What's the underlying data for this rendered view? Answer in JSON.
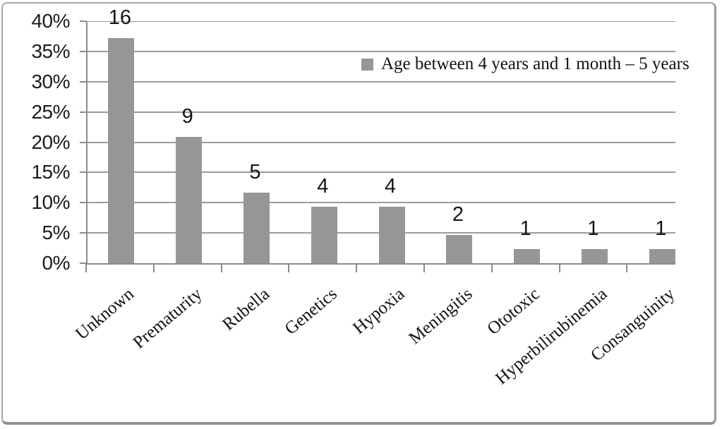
{
  "chart_data": {
    "type": "bar",
    "title": "",
    "categories": [
      "Unknown",
      "Prematurity",
      "Rubella",
      "Genetics",
      "Hypoxia",
      "Meningitis",
      "Ototoxic",
      "Hyperbilirubinemia",
      "Consanguinity"
    ],
    "values": [
      16,
      9,
      5,
      4,
      4,
      2,
      1,
      1,
      1
    ],
    "bar_value_labels": [
      "16",
      "9",
      "5",
      "4",
      "4",
      "2",
      "1",
      "1",
      "1"
    ],
    "percent_equivalents": [
      37.2,
      20.9,
      11.6,
      9.3,
      9.3,
      4.7,
      2.3,
      2.3,
      2.3
    ],
    "y_tick_labels": [
      "40%",
      "35%",
      "30%",
      "25%",
      "20%",
      "15%",
      "10%",
      "5%",
      "0%"
    ],
    "ylim_percent": [
      0,
      40
    ],
    "y_tick_step_percent": 5,
    "xlabel": "",
    "ylabel": "",
    "grid": "horizontal",
    "legend": {
      "label": "Age between 4 years and 1 month – 5 years",
      "position": "inside-top-right",
      "swatch_color": "#969696"
    },
    "bar_color": "#969696",
    "gridline_color": "#9c9c9c",
    "axis_color": "#8c8c8c",
    "x_label_rotation_deg": -40
  }
}
